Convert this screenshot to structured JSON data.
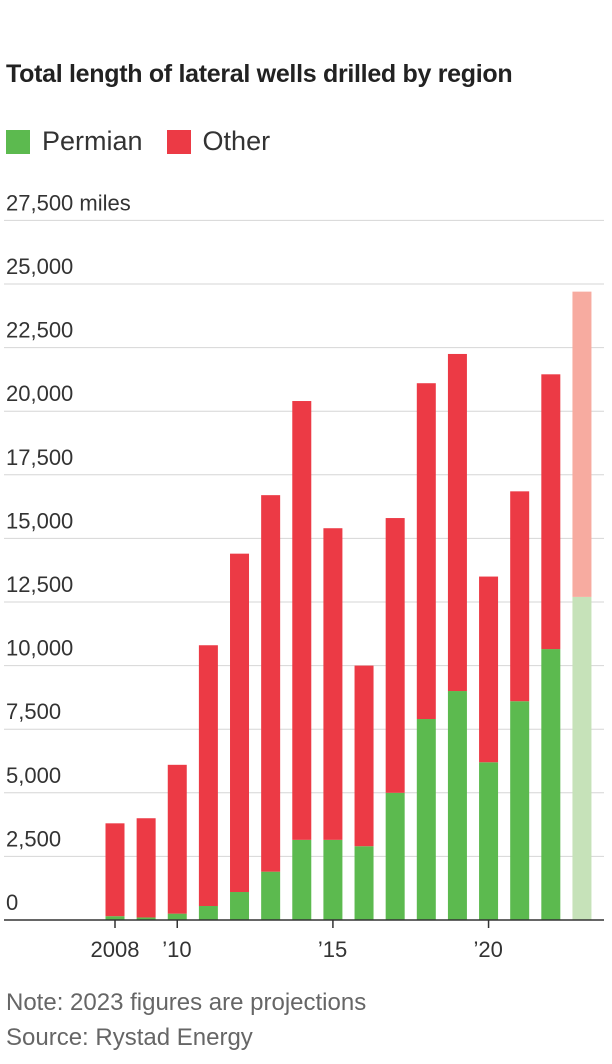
{
  "header": {
    "title": "Total length of lateral wells drilled by region"
  },
  "legend": [
    {
      "label": "Permian",
      "color": "#5cba4f"
    },
    {
      "label": "Other",
      "color": "#ec3a45"
    }
  ],
  "footer": {
    "note": "Note: 2023 figures are projections",
    "source": "Source: Rystad Energy"
  },
  "chart_data": {
    "type": "bar",
    "stacked": true,
    "title": "Total length of lateral wells drilled by region",
    "xlabel": "",
    "ylabel": "",
    "y_unit": "miles",
    "ylim": [
      0,
      27500
    ],
    "y_ticks": [
      0,
      2500,
      5000,
      7500,
      10000,
      12500,
      15000,
      17500,
      20000,
      22500,
      25000,
      27500
    ],
    "y_tick_labels": [
      "0",
      "2,500",
      "5,000",
      "7,500",
      "10,000",
      "12,500",
      "15,000",
      "17,500",
      "20,000",
      "22,500",
      "25,000",
      "27,500 miles"
    ],
    "grid": true,
    "legend_position": "top-left",
    "categories": [
      2008,
      2009,
      2010,
      2011,
      2012,
      2013,
      2014,
      2015,
      2016,
      2017,
      2018,
      2019,
      2020,
      2021,
      2022,
      2023
    ],
    "x_tick_labels": [
      {
        "year": 2008,
        "label": "2008"
      },
      {
        "year": 2010,
        "label": "’10"
      },
      {
        "year": 2015,
        "label": "’15"
      },
      {
        "year": 2020,
        "label": "’20"
      }
    ],
    "projected_categories": [
      2023
    ],
    "series": [
      {
        "name": "Permian",
        "color": "#5cba4f",
        "projected_color": "#c6e2b9",
        "values": [
          150,
          100,
          250,
          550,
          1100,
          1900,
          3150,
          3150,
          2900,
          5000,
          7900,
          9000,
          6200,
          8600,
          10650,
          12700
        ]
      },
      {
        "name": "Other",
        "color": "#ec3a45",
        "projected_color": "#f7aba0",
        "values": [
          3650,
          3900,
          5850,
          10250,
          13300,
          14800,
          17250,
          12250,
          7100,
          10800,
          13200,
          13250,
          7300,
          8250,
          10800,
          12000
        ]
      }
    ]
  }
}
